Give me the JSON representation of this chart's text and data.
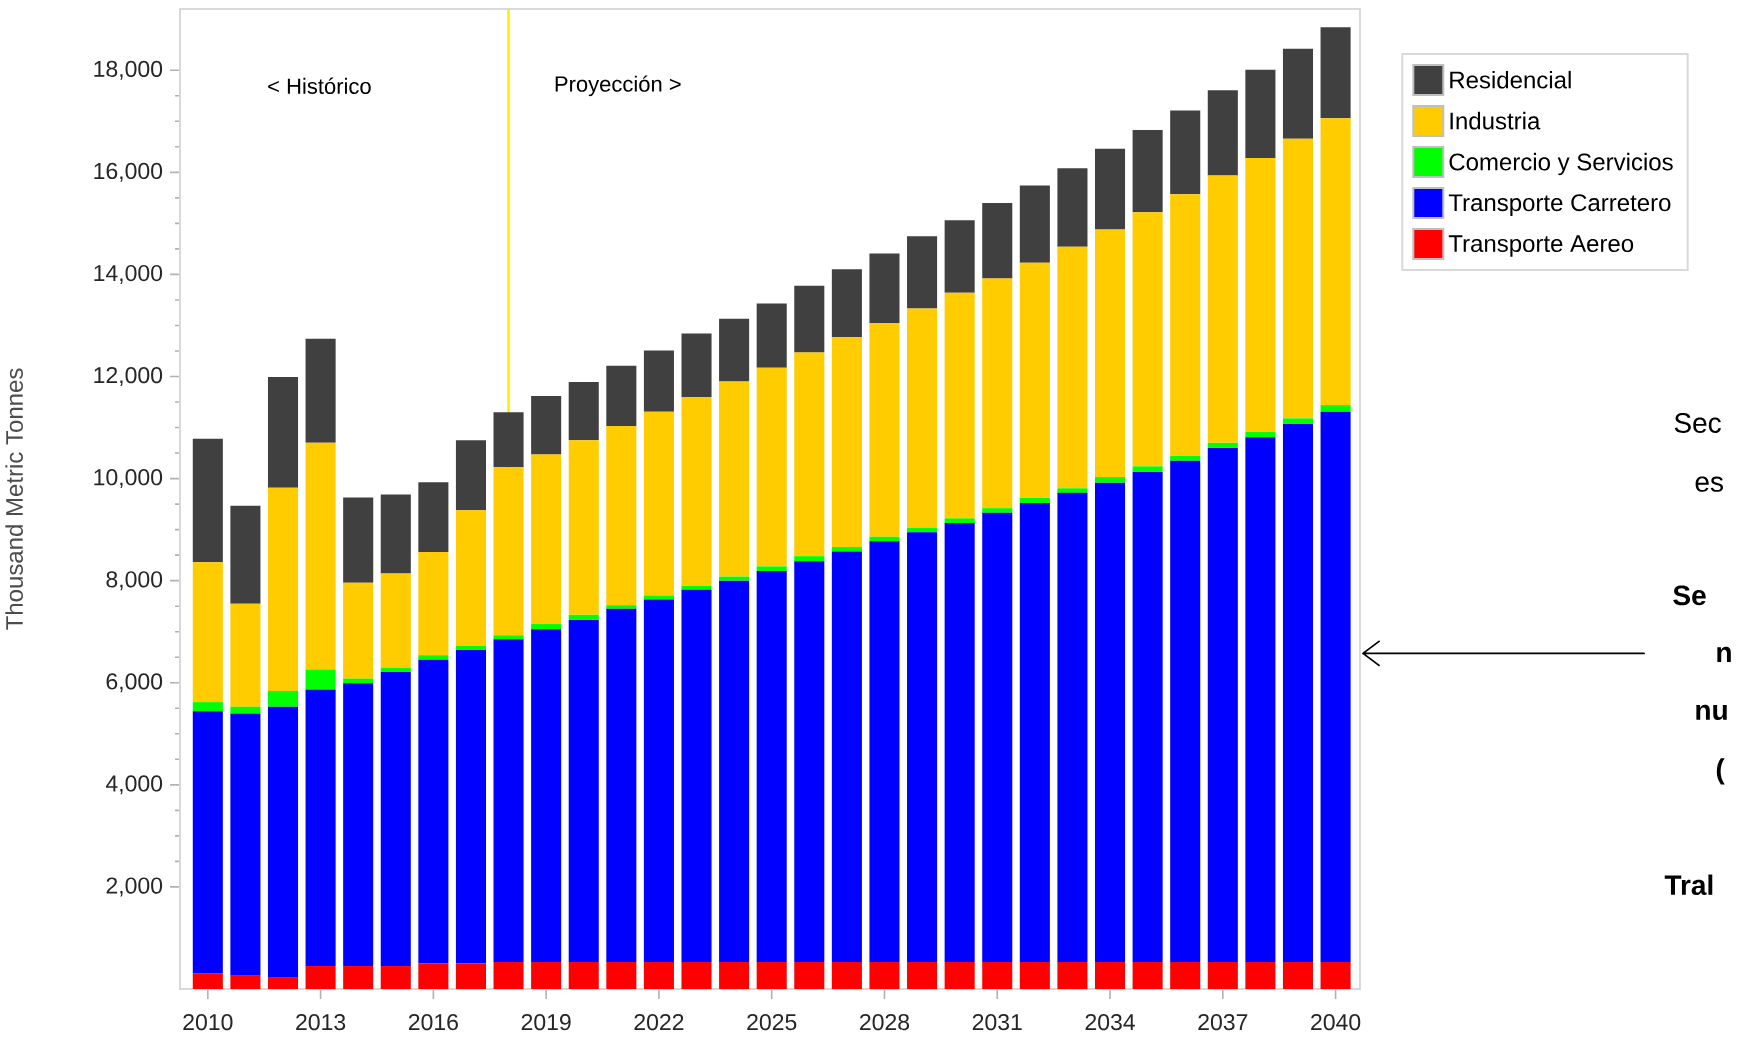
{
  "chart_data": {
    "type": "bar",
    "stacked": true,
    "ylabel": "Thousand Metric Tonnes",
    "x": [
      2010,
      2011,
      2012,
      2013,
      2014,
      2015,
      2016,
      2017,
      2018,
      2019,
      2020,
      2021,
      2022,
      2023,
      2024,
      2025,
      2026,
      2027,
      2028,
      2029,
      2030,
      2031,
      2032,
      2033,
      2034,
      2035,
      2036,
      2037,
      2038,
      2039,
      2040
    ],
    "xlim": [
      2009.26,
      2040.65
    ],
    "xticks": [
      2010,
      2013,
      2016,
      2019,
      2022,
      2025,
      2028,
      2031,
      2034,
      2037,
      2040
    ],
    "ylim": [
      0,
      19200
    ],
    "yticks": [
      {
        "value": 2000,
        "label": "2,000"
      },
      {
        "value": 4000,
        "label": "4,000"
      },
      {
        "value": 6000,
        "label": "6,000"
      },
      {
        "value": 8000,
        "label": "8,000"
      },
      {
        "value": 10000,
        "label": "10,000"
      },
      {
        "value": 12000,
        "label": "12,000"
      },
      {
        "value": 14000,
        "label": "14,000"
      },
      {
        "value": 16000,
        "label": "16,000"
      },
      {
        "value": 18000,
        "label": "18,000"
      }
    ],
    "series": [
      {
        "name": "Transporte Aereo",
        "color": "#ff0000",
        "values": [
          310,
          260,
          220,
          450,
          450,
          450,
          500,
          500,
          530,
          530,
          530,
          530,
          530,
          530,
          530,
          530,
          530,
          530,
          530,
          530,
          530,
          530,
          530,
          530,
          530,
          530,
          530,
          530,
          530,
          530,
          530
        ]
      },
      {
        "name": "Transporte Carretero",
        "color": "#0000ff",
        "values": [
          5130,
          5140,
          5310,
          5420,
          5540,
          5760,
          5950,
          6140,
          6320,
          6520,
          6700,
          6920,
          7100,
          7290,
          7470,
          7660,
          7850,
          8040,
          8240,
          8420,
          8600,
          8800,
          8990,
          9190,
          9390,
          9600,
          9820,
          10070,
          10280,
          10540,
          10780
        ]
      },
      {
        "name": "Comercio y Servicios",
        "color": "#00ff00",
        "values": [
          180,
          130,
          310,
          390,
          90,
          80,
          90,
          80,
          80,
          100,
          100,
          70,
          80,
          80,
          80,
          90,
          100,
          90,
          90,
          90,
          90,
          90,
          100,
          90,
          110,
          110,
          100,
          100,
          110,
          110,
          130
        ]
      },
      {
        "name": "Industria",
        "color": "#ffcc00",
        "values": [
          2740,
          2020,
          3980,
          4440,
          1880,
          1850,
          2020,
          2660,
          3290,
          3320,
          3420,
          3510,
          3600,
          3700,
          3820,
          3890,
          3990,
          4110,
          4190,
          4290,
          4420,
          4500,
          4610,
          4730,
          4850,
          4980,
          5120,
          5240,
          5360,
          5480,
          5620
        ]
      },
      {
        "name": "Residencial",
        "color": "#404040",
        "values": [
          2420,
          1920,
          2170,
          2040,
          1670,
          1550,
          1370,
          1370,
          1080,
          1150,
          1140,
          1180,
          1200,
          1240,
          1230,
          1260,
          1310,
          1330,
          1360,
          1420,
          1420,
          1480,
          1510,
          1540,
          1580,
          1610,
          1640,
          1670,
          1730,
          1760,
          1780
        ]
      }
    ],
    "ref_lines": [
      {
        "axis": "x",
        "value": 2018,
        "label": null,
        "color": "#f5ef00"
      }
    ],
    "annotations": [
      "< Histórico",
      "Proyección >",
      "Sec",
      "es",
      "Se",
      "n",
      "nu",
      "(",
      "Tral"
    ],
    "legend": "right",
    "grid": false
  }
}
